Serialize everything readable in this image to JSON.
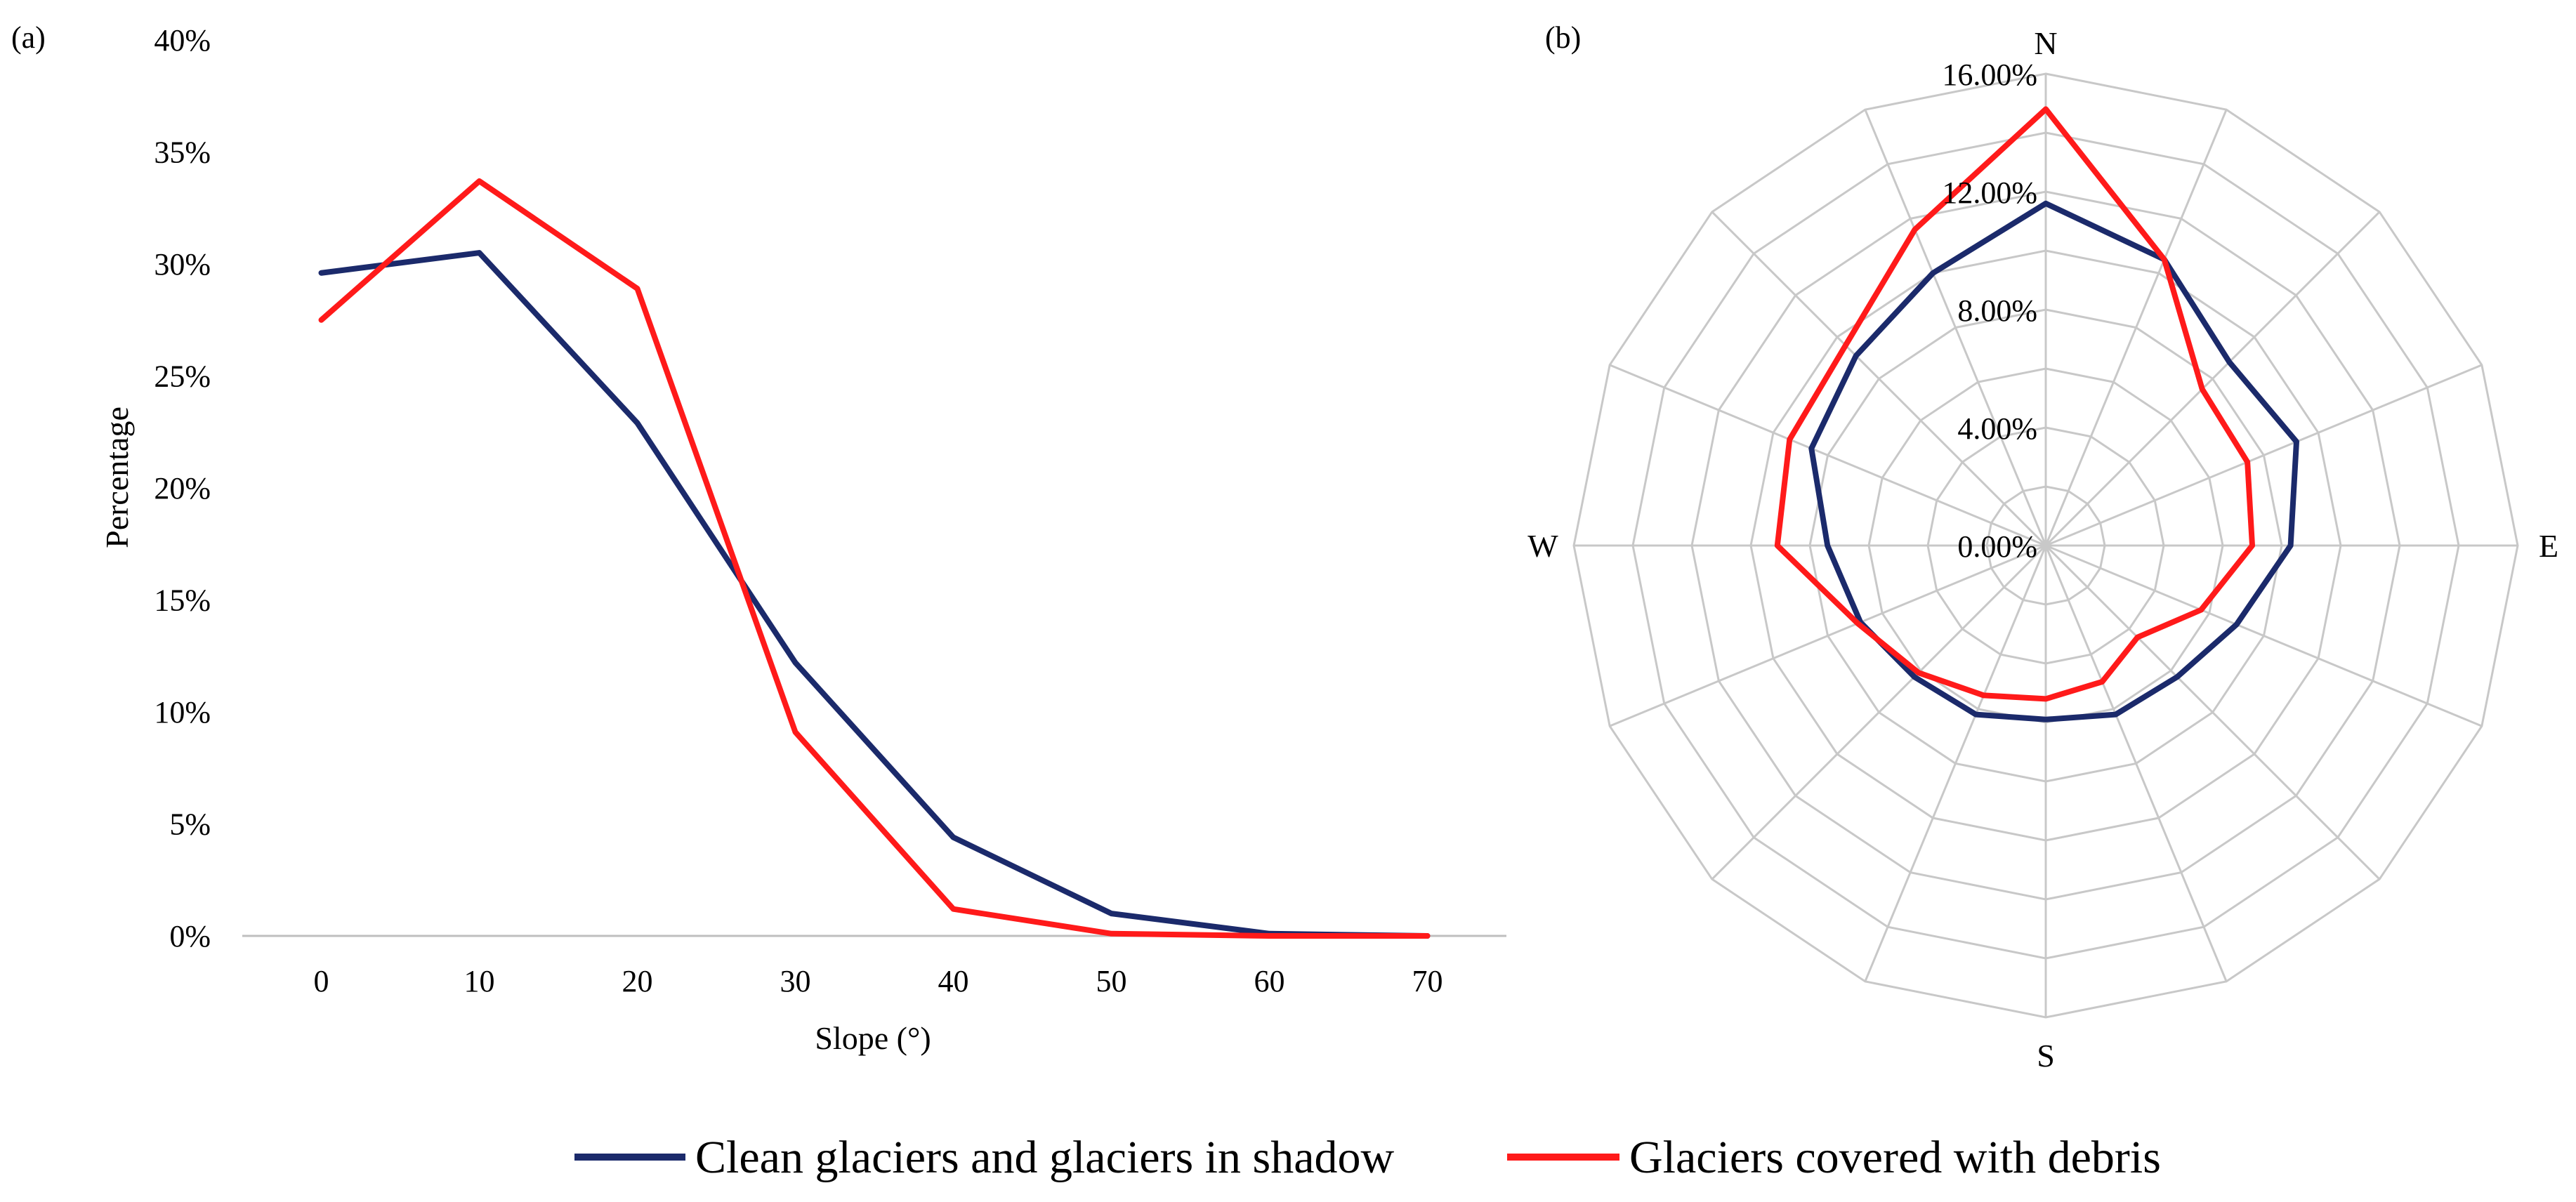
{
  "colors": {
    "clean": "#1b2a6b",
    "debris": "#ff1a1a",
    "grid": "#c8c8c8",
    "axis": "#bfbfbf"
  },
  "legend": {
    "clean_label": "Clean glaciers and glaciers in shadow",
    "debris_label": "Glaciers covered with debris"
  },
  "chart_data": [
    {
      "id": "a",
      "type": "line",
      "panel_label": "(a)",
      "title": "",
      "xlabel": "Slope (°)",
      "ylabel": "Percentage",
      "categories": [
        "0",
        "10",
        "20",
        "30",
        "40",
        "50",
        "60",
        "70"
      ],
      "ylim": [
        0,
        40
      ],
      "y_ticks": [
        "0%",
        "5%",
        "10%",
        "15%",
        "20%",
        "25%",
        "30%",
        "35%",
        "40%"
      ],
      "series": [
        {
          "name": "Clean glaciers and glaciers in shadow",
          "color_key": "clean",
          "values": [
            29.6,
            30.5,
            22.9,
            12.2,
            4.4,
            1.0,
            0.1,
            0.0
          ]
        },
        {
          "name": "Glaciers covered with debris",
          "color_key": "debris",
          "values": [
            27.5,
            33.7,
            28.9,
            9.1,
            1.2,
            0.1,
            0.0,
            0.0
          ]
        }
      ]
    },
    {
      "id": "b",
      "type": "radar",
      "panel_label": "(b)",
      "directions": [
        "N",
        "E",
        "S",
        "W"
      ],
      "spokes": 16,
      "rmax": 16,
      "rings": [
        2,
        4,
        6,
        8,
        10,
        12,
        14,
        16
      ],
      "ring_labels": [
        "0.00%",
        "4.00%",
        "8.00%",
        "12.00%",
        "16.00%"
      ],
      "series": [
        {
          "name": "Clean glaciers and glaciers in shadow",
          "color_key": "clean",
          "values": [
            11.6,
            10.5,
            8.8,
            9.2,
            8.3,
            7.0,
            6.3,
            6.2,
            5.9,
            6.2,
            6.3,
            6.8,
            7.4,
            8.6,
            9.1,
            10.0
          ]
        },
        {
          "name": "Glaciers covered with debris",
          "color_key": "debris",
          "values": [
            14.8,
            10.5,
            7.5,
            7.4,
            7.0,
            5.7,
            4.4,
            5.0,
            5.2,
            5.5,
            6.1,
            6.9,
            9.1,
            9.4,
            9.6,
            11.6
          ]
        }
      ]
    }
  ]
}
